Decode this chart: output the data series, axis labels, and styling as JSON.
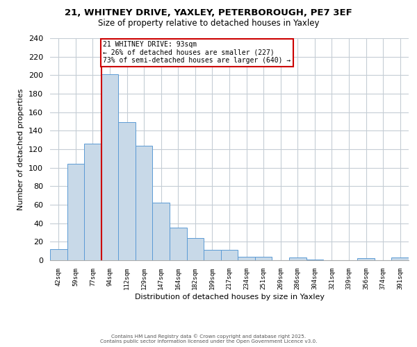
{
  "title_line1": "21, WHITNEY DRIVE, YAXLEY, PETERBOROUGH, PE7 3EF",
  "title_line2": "Size of property relative to detached houses in Yaxley",
  "xlabel": "Distribution of detached houses by size in Yaxley",
  "ylabel": "Number of detached properties",
  "bar_labels": [
    "42sqm",
    "59sqm",
    "77sqm",
    "94sqm",
    "112sqm",
    "129sqm",
    "147sqm",
    "164sqm",
    "182sqm",
    "199sqm",
    "217sqm",
    "234sqm",
    "251sqm",
    "269sqm",
    "286sqm",
    "304sqm",
    "321sqm",
    "339sqm",
    "356sqm",
    "374sqm",
    "391sqm"
  ],
  "bar_values": [
    12,
    104,
    126,
    201,
    149,
    124,
    62,
    35,
    24,
    11,
    11,
    4,
    4,
    0,
    3,
    1,
    0,
    0,
    2,
    0,
    3
  ],
  "bar_color": "#c8d9e8",
  "bar_edge_color": "#5b9bd5",
  "vline_color": "#cc0000",
  "vline_bar_index": 3,
  "annotation_title": "21 WHITNEY DRIVE: 93sqm",
  "annotation_line2": "← 26% of detached houses are smaller (227)",
  "annotation_line3": "73% of semi-detached houses are larger (640) →",
  "annotation_box_edge_color": "#cc0000",
  "ylim": [
    0,
    240
  ],
  "yticks": [
    0,
    20,
    40,
    60,
    80,
    100,
    120,
    140,
    160,
    180,
    200,
    220,
    240
  ],
  "footer_line1": "Contains HM Land Registry data © Crown copyright and database right 2025.",
  "footer_line2": "Contains public sector information licensed under the Open Government Licence v3.0.",
  "background_color": "#ffffff",
  "grid_color": "#c5cdd5"
}
